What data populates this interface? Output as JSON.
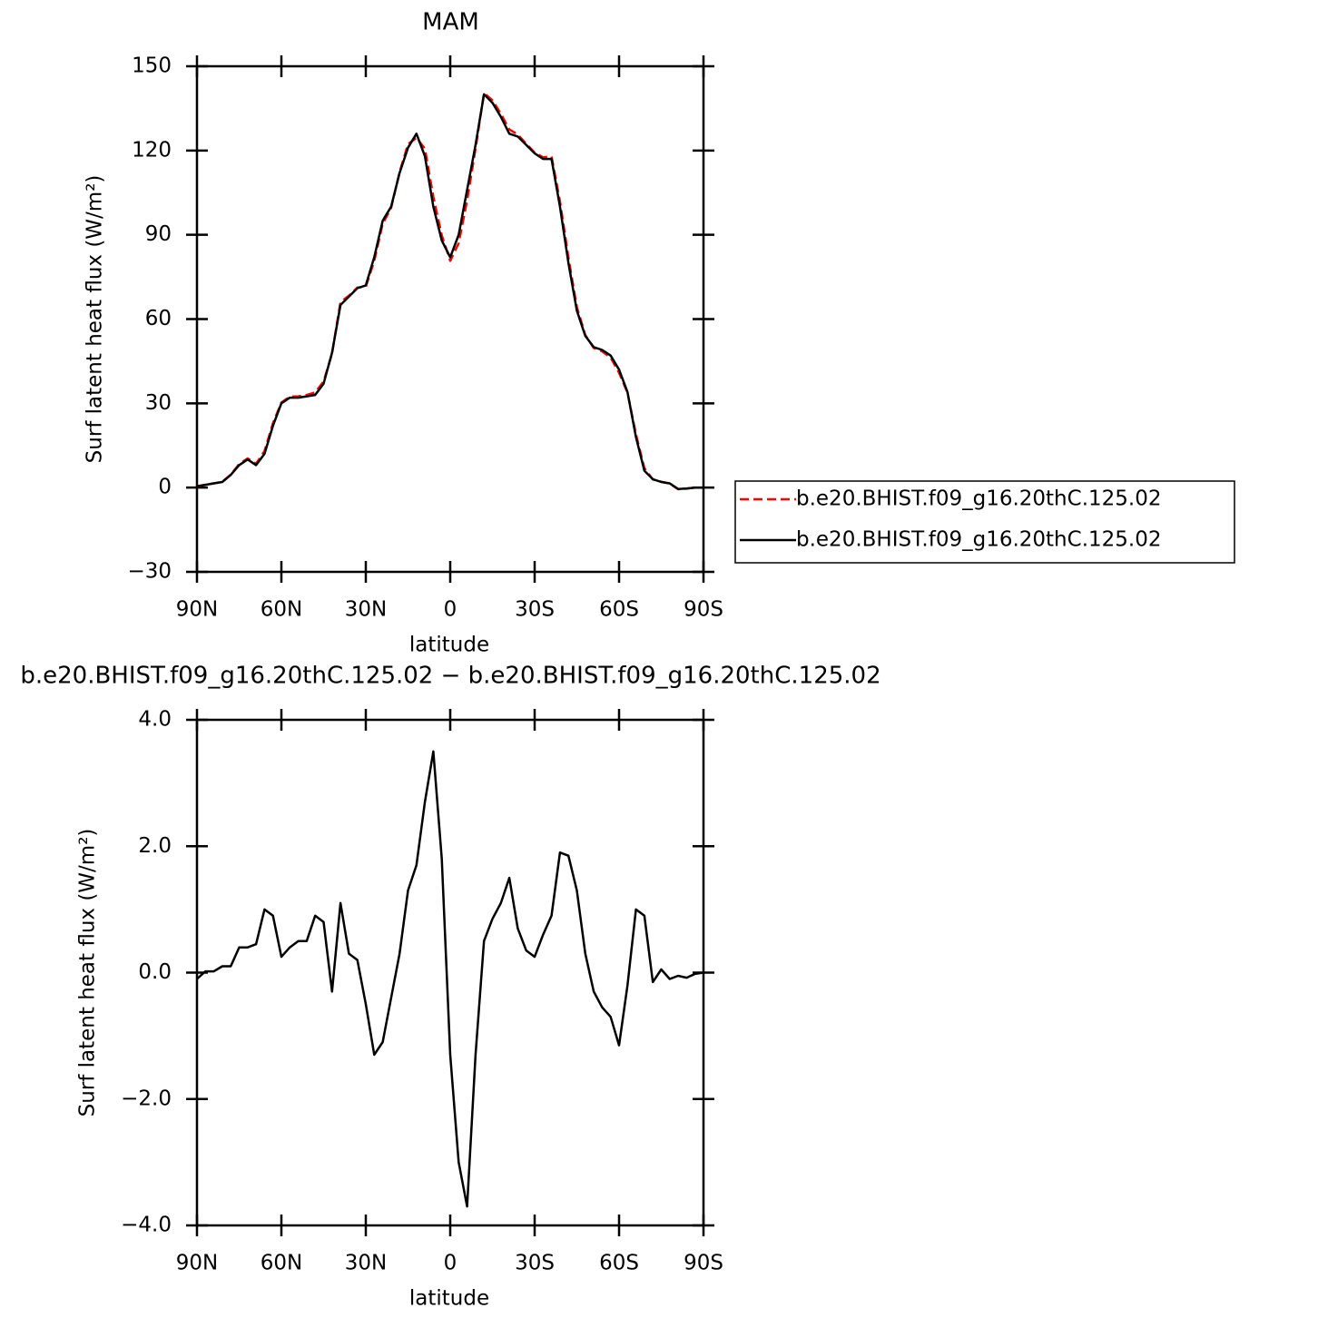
{
  "chart_data": [
    {
      "type": "line",
      "title": "MAM",
      "x_label": "latitude",
      "y_label": "Surf latent heat flux (W/m²)",
      "x": [
        90,
        87,
        84,
        81,
        78,
        75,
        72,
        69,
        66,
        63,
        60,
        57,
        54,
        51,
        48,
        45,
        42,
        39,
        36,
        33,
        30,
        27,
        24,
        21,
        18,
        15,
        12,
        9,
        6,
        3,
        0,
        -3,
        -6,
        -9,
        -12,
        -15,
        -18,
        -21,
        -24,
        -27,
        -30,
        -33,
        -36,
        -39,
        -42,
        -45,
        -48,
        -51,
        -54,
        -57,
        -60,
        -63,
        -66,
        -69,
        -72,
        -75,
        -78,
        -81,
        -84,
        -87,
        -90
      ],
      "series": [
        {
          "name": "b.e20.BHIST.f09_g16.20thC.125.02",
          "color": "#ff0000",
          "dash": true,
          "values": [
            0.4,
            1.0,
            1.5,
            2.1,
            4.6,
            8.4,
            10.4,
            8.5,
            13,
            22.9,
            30.3,
            32.4,
            32.5,
            33,
            33.9,
            37.8,
            47.7,
            66.1,
            68.3,
            71.2,
            71.5,
            80.7,
            93.9,
            99.6,
            112.3,
            122.3,
            124.5,
            120.7,
            103.5,
            89.8,
            80.7,
            87,
            102.3,
            120.7,
            140.5,
            137.9,
            133.1,
            127.5,
            125.7,
            122.4,
            119.3,
            117.6,
            117.9,
            101.9,
            81.9,
            64.3,
            54.3,
            49.7,
            48.5,
            46.3,
            40.9,
            33.8,
            19,
            6.9,
            2.9,
            2.1,
            1.4,
            -0.6,
            -0.4,
            0,
            0
          ]
        },
        {
          "name": "b.e20.BHIST.f09_g16.20thC.125.02",
          "color": "#000000",
          "dash": false,
          "values": [
            0.5,
            1,
            1.5,
            2,
            4.5,
            8,
            10,
            8,
            12,
            22,
            30,
            32,
            32,
            32.5,
            33,
            37,
            48,
            65,
            68,
            71,
            72,
            82,
            95,
            100,
            112,
            121,
            126,
            118,
            100,
            88,
            82,
            90,
            106,
            122,
            140,
            137,
            132,
            126,
            125,
            122,
            119,
            117,
            117,
            100,
            80,
            63,
            54,
            50,
            49,
            47,
            42,
            34,
            18,
            6,
            3,
            2,
            1.5,
            -0.5,
            -0.3,
            0,
            0
          ]
        }
      ],
      "xlim": [
        90,
        -90
      ],
      "xticks": [
        {
          "value": 90,
          "label": "90N"
        },
        {
          "value": 60,
          "label": "60N"
        },
        {
          "value": 30,
          "label": "30N"
        },
        0,
        {
          "value": -30,
          "label": "30S"
        },
        {
          "value": -60,
          "label": "60S"
        },
        {
          "value": -90,
          "label": "90S"
        }
      ],
      "ylim": [
        -30,
        150
      ],
      "yticks": [
        {
          "value": -30,
          "label": "−30"
        },
        0,
        30,
        60,
        90,
        120,
        150
      ],
      "legend": "outside-right"
    },
    {
      "type": "line",
      "title": "b.e20.BHIST.f09_g16.20thC.125.02 − b.e20.BHIST.f09_g16.20thC.125.02",
      "x_label": "latitude",
      "y_label": "Surf latent heat flux (W/m²)",
      "x": [
        90,
        87,
        84,
        81,
        78,
        75,
        72,
        69,
        66,
        63,
        60,
        57,
        54,
        51,
        48,
        45,
        42,
        39,
        36,
        33,
        30,
        27,
        24,
        21,
        18,
        15,
        12,
        9,
        6,
        3,
        0,
        -3,
        -6,
        -9,
        -12,
        -15,
        -18,
        -21,
        -24,
        -27,
        -30,
        -33,
        -36,
        -39,
        -42,
        -45,
        -48,
        -51,
        -54,
        -57,
        -60,
        -63,
        -66,
        -69,
        -72,
        -75,
        -78,
        -81,
        -84,
        -87,
        -90
      ],
      "series": [
        {
          "color": "#000000",
          "dash": false,
          "values": [
            -0.1,
            0.02,
            0.02,
            0.1,
            0.1,
            0.4,
            0.4,
            0.45,
            1.0,
            0.9,
            0.25,
            0.4,
            0.5,
            0.5,
            0.9,
            0.8,
            -0.3,
            1.1,
            0.3,
            0.2,
            -0.5,
            -1.3,
            -1.1,
            -0.4,
            0.3,
            1.3,
            1.7,
            2.7,
            3.5,
            1.8,
            -1.3,
            -3.0,
            -3.7,
            -1.3,
            0.5,
            0.85,
            1.1,
            1.5,
            0.7,
            0.35,
            0.25,
            0.6,
            0.9,
            1.9,
            1.85,
            1.3,
            0.3,
            -0.3,
            -0.55,
            -0.7,
            -1.15,
            -0.2,
            1.0,
            0.9,
            -0.15,
            0.05,
            -0.1,
            -0.05,
            -0.08,
            -0.02,
            0
          ]
        }
      ],
      "xlim": [
        90,
        -90
      ],
      "xticks": [
        {
          "value": 90,
          "label": "90N"
        },
        {
          "value": 60,
          "label": "60N"
        },
        {
          "value": 30,
          "label": "30N"
        },
        0,
        {
          "value": -30,
          "label": "30S"
        },
        {
          "value": -60,
          "label": "60S"
        },
        {
          "value": -90,
          "label": "90S"
        }
      ],
      "ylim": [
        -4,
        4
      ],
      "yticks": [
        {
          "value": -4,
          "label": "−4.0"
        },
        {
          "value": -2,
          "label": "−2.0"
        },
        {
          "value": 0,
          "label": "0.0"
        },
        {
          "value": 2,
          "label": "2.0"
        },
        {
          "value": 4,
          "label": "4.0"
        }
      ]
    }
  ]
}
